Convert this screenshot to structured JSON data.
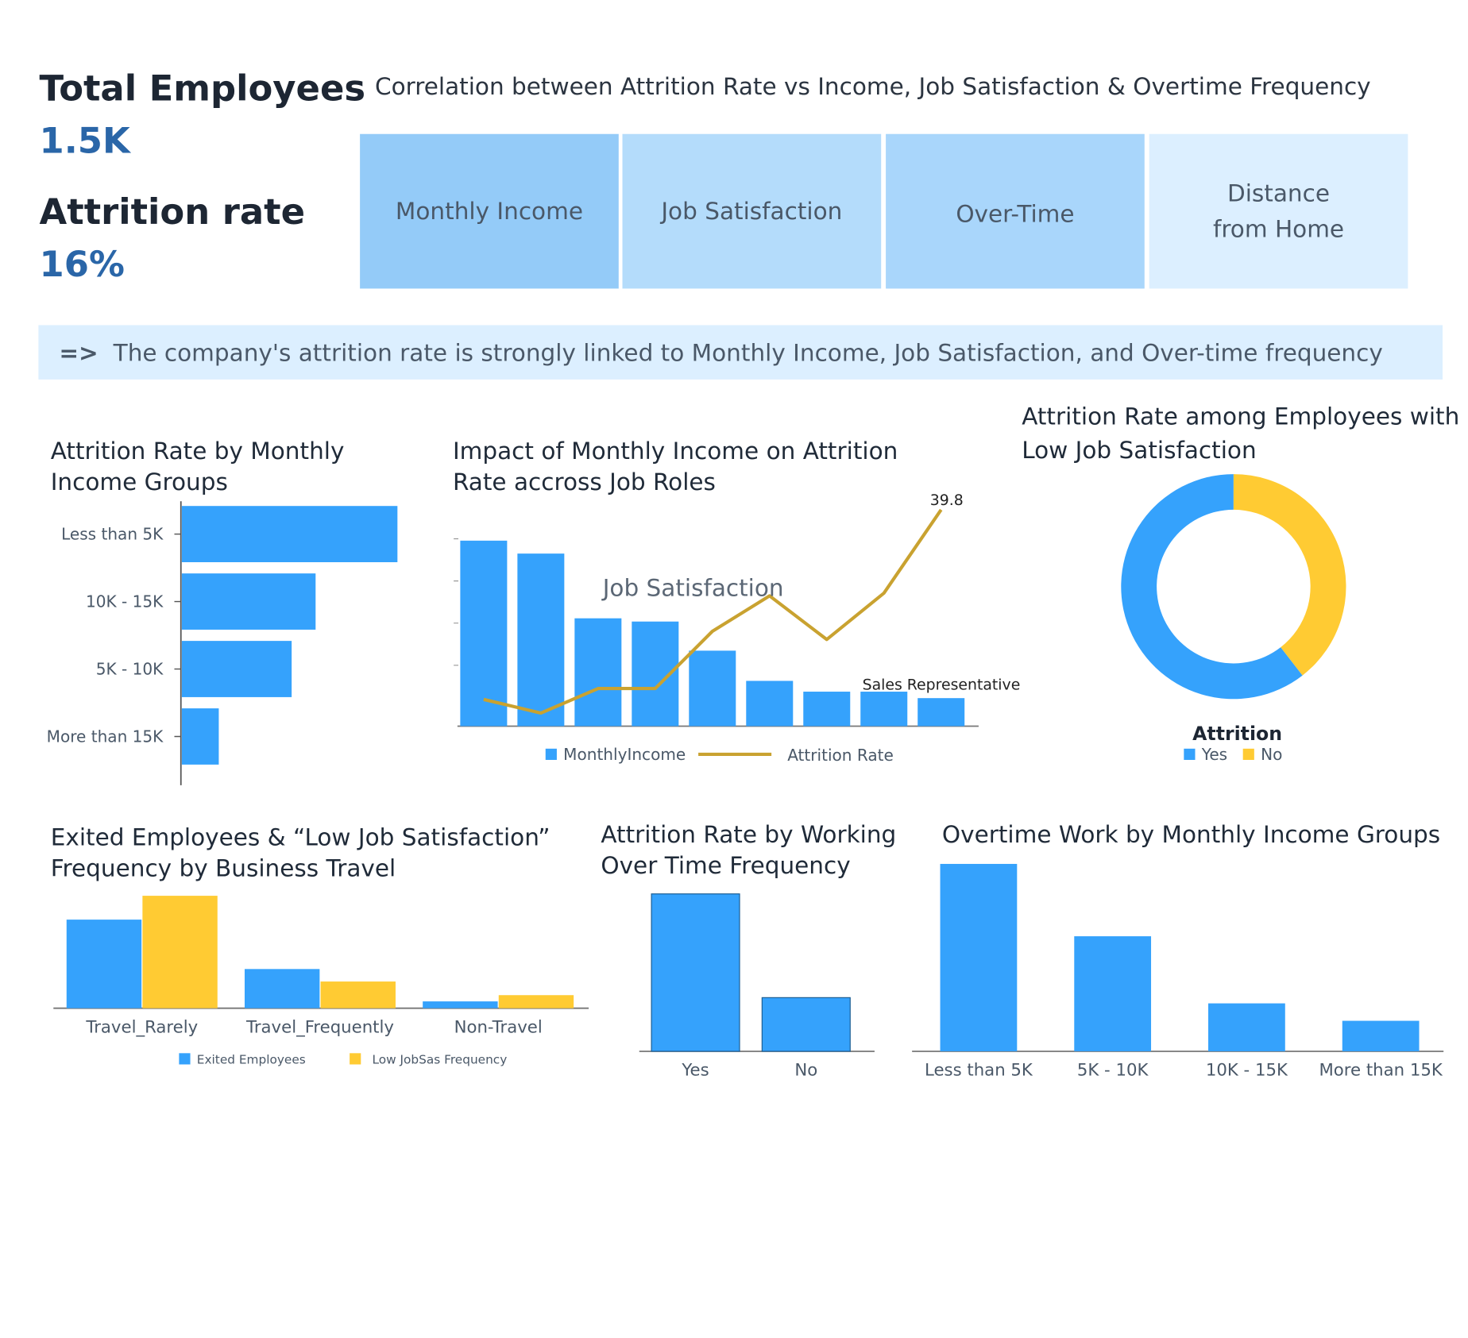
{
  "kpis": {
    "total_label": "Total  Employees",
    "total_value": "1.5K",
    "attrition_label": "Attrition rate",
    "attrition_value": "16%"
  },
  "correlation": {
    "title": "Correlation between Attrition Rate vs Income, Job Satisfaction & Overtime Frequency",
    "tiles": [
      {
        "label": "Monthly Income",
        "color": "#94cbf8"
      },
      {
        "label": "Job Satisfaction",
        "color": "#b4dcfb"
      },
      {
        "label": "Over-Time",
        "color": "#a9d6fb"
      },
      {
        "label": "Distance\nfrom Home",
        "color": "#dcefff"
      }
    ]
  },
  "insight": {
    "arrow": "=>",
    "text": "The company's attrition rate is strongly linked to Monthly Income, Job Satisfaction, and Over-time frequency"
  },
  "colors": {
    "blue": "#35a2fc",
    "yellow": "#ffcb33",
    "gold_line": "#c9a230",
    "axis": "#555555"
  },
  "chart_data": [
    {
      "id": "income-groups",
      "type": "bar",
      "orientation": "horizontal",
      "title": "Attrition Rate by Monthly\nIncome Groups",
      "categories": [
        "Less than 5K",
        "10K - 15K",
        "5K - 10K",
        "More than 15K"
      ],
      "values": [
        21.6,
        13.4,
        11.0,
        3.7
      ]
    },
    {
      "id": "job-roles",
      "type": "bar",
      "title": "Impact of Monthly Income on Attrition\nRate accross Job Roles",
      "series": [
        {
          "name": "MonthlyIncome",
          "values": [
            17200,
            16000,
            10000,
            9700,
            7000,
            4200,
            3200,
            3200,
            2600
          ]
        },
        {
          "name": "Attrition Rate",
          "type": "line",
          "values": [
            5.0,
            2.5,
            7.0,
            7.0,
            17.5,
            24.0,
            16.0,
            24.5,
            39.8
          ]
        }
      ],
      "annotations": [
        "39.8",
        "Sales Representative",
        "Job Satisfaction"
      ]
    },
    {
      "id": "low-satisfaction",
      "type": "pie",
      "title": "Attrition Rate among Employees with\nLow Job Satisfaction",
      "legend_title": "Attrition",
      "slices": [
        {
          "label": "Yes",
          "value": 60.5
        },
        {
          "label": "No",
          "value": 39.5
        }
      ]
    },
    {
      "id": "business-travel",
      "type": "bar",
      "title": "Exited Employees & “Low Job Satisfaction”\nFrequency by Business Travel",
      "categories": [
        "Travel_Rarely",
        "Travel_Frequently",
        "Non-Travel"
      ],
      "series": [
        {
          "name": "Exited Employees",
          "values": [
            156,
            69,
            12
          ]
        },
        {
          "name": "Low JobSas Frequency",
          "values": [
            198,
            47,
            23
          ]
        }
      ]
    },
    {
      "id": "overtime",
      "type": "bar",
      "title": "Attrition Rate by Working\nOver Time Frequency",
      "categories": [
        "Yes",
        "No"
      ],
      "values": [
        30.5,
        10.4
      ]
    },
    {
      "id": "overtime-income",
      "type": "bar",
      "title": "Overtime Work by Monthly Income Groups",
      "categories": [
        "Less than 5K",
        "5K - 10K",
        "10K - 15K",
        "More than 15K"
      ],
      "values": [
        215,
        132,
        55,
        35
      ]
    }
  ]
}
